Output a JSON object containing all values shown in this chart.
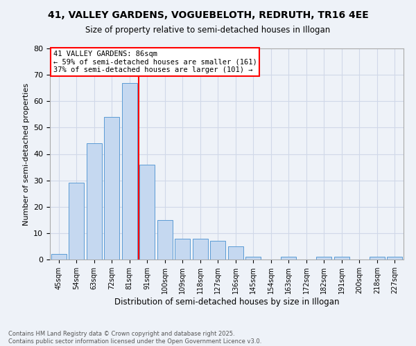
{
  "title_line1": "41, VALLEY GARDENS, VOGUEBELOTH, REDRUTH, TR16 4EE",
  "title_line2": "Size of property relative to semi-detached houses in Illogan",
  "xlabel": "Distribution of semi-detached houses by size in Illogan",
  "ylabel": "Number of semi-detached properties",
  "categories": [
    "45sqm",
    "54sqm",
    "63sqm",
    "72sqm",
    "81sqm",
    "91sqm",
    "100sqm",
    "109sqm",
    "118sqm",
    "127sqm",
    "136sqm",
    "145sqm",
    "154sqm",
    "163sqm",
    "172sqm",
    "182sqm",
    "191sqm",
    "200sqm",
    "218sqm",
    "227sqm"
  ],
  "values": [
    2,
    29,
    44,
    54,
    67,
    36,
    15,
    8,
    8,
    7,
    5,
    1,
    0,
    1,
    0,
    1,
    1,
    0,
    1,
    1
  ],
  "bar_color": "#c5d8f0",
  "bar_edge_color": "#5b9bd5",
  "grid_color": "#d0d8e8",
  "background_color": "#eef2f8",
  "vline_x": 4.5,
  "vline_color": "red",
  "annotation_text": "41 VALLEY GARDENS: 86sqm\n← 59% of semi-detached houses are smaller (161)\n37% of semi-detached houses are larger (101) →",
  "annotation_box_color": "white",
  "annotation_box_edge": "red",
  "ylim": [
    0,
    80
  ],
  "yticks": [
    0,
    10,
    20,
    30,
    40,
    50,
    60,
    70,
    80
  ],
  "footnote": "Contains HM Land Registry data © Crown copyright and database right 2025.\nContains public sector information licensed under the Open Government Licence v3.0.",
  "title_fontsize": 10,
  "subtitle_fontsize": 8.5,
  "xlabel_fontsize": 8.5,
  "ylabel_fontsize": 8,
  "xtick_fontsize": 7,
  "ytick_fontsize": 8,
  "footnote_fontsize": 6,
  "annotation_fontsize": 7.5
}
